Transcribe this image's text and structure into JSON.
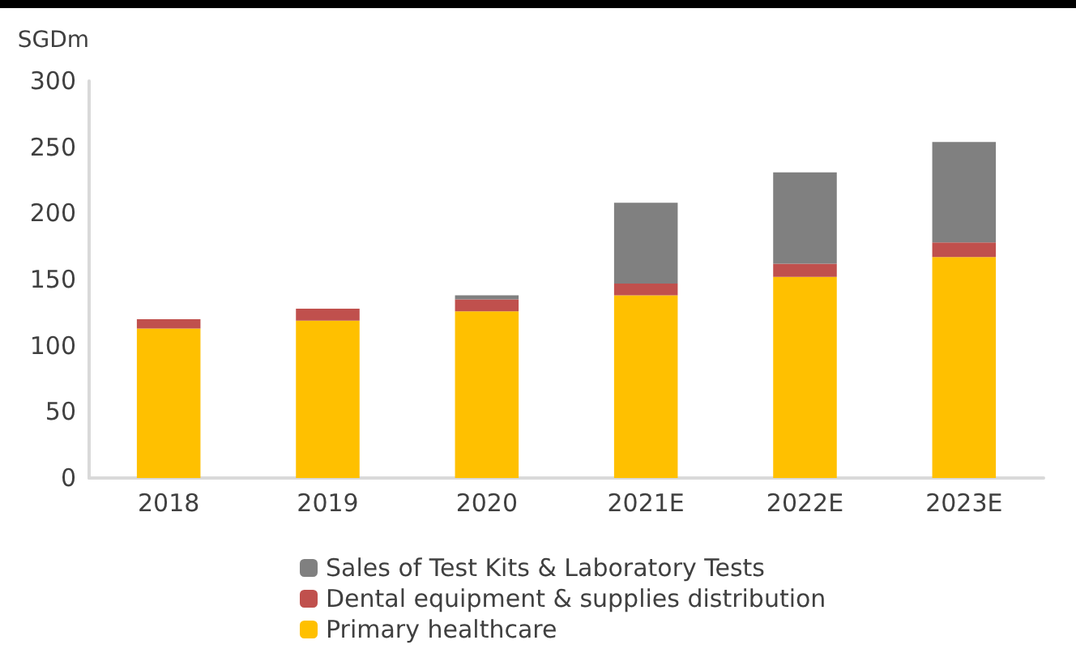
{
  "chart_data": {
    "type": "bar",
    "ylabel": "SGDm",
    "categories": [
      "2018",
      "2019",
      "2020",
      "2021E",
      "2022E",
      "2023E"
    ],
    "series": [
      {
        "name": "Primary healthcare",
        "color": "#ffc000",
        "values": [
          113,
          119,
          126,
          138,
          152,
          167
        ]
      },
      {
        "name": "Dental equipment & supplies distribution",
        "color": "#c0504d",
        "values": [
          7,
          9,
          9,
          9,
          10,
          11
        ]
      },
      {
        "name": "Sales of Test Kits & Laboratory Tests",
        "color": "#808080",
        "values": [
          0,
          0,
          3,
          61,
          69,
          76
        ]
      }
    ],
    "stacked": true,
    "ylim": [
      0,
      300
    ],
    "yticks": [
      0,
      50,
      100,
      150,
      200,
      250,
      300
    ],
    "grid": false,
    "legend": "bottom"
  }
}
